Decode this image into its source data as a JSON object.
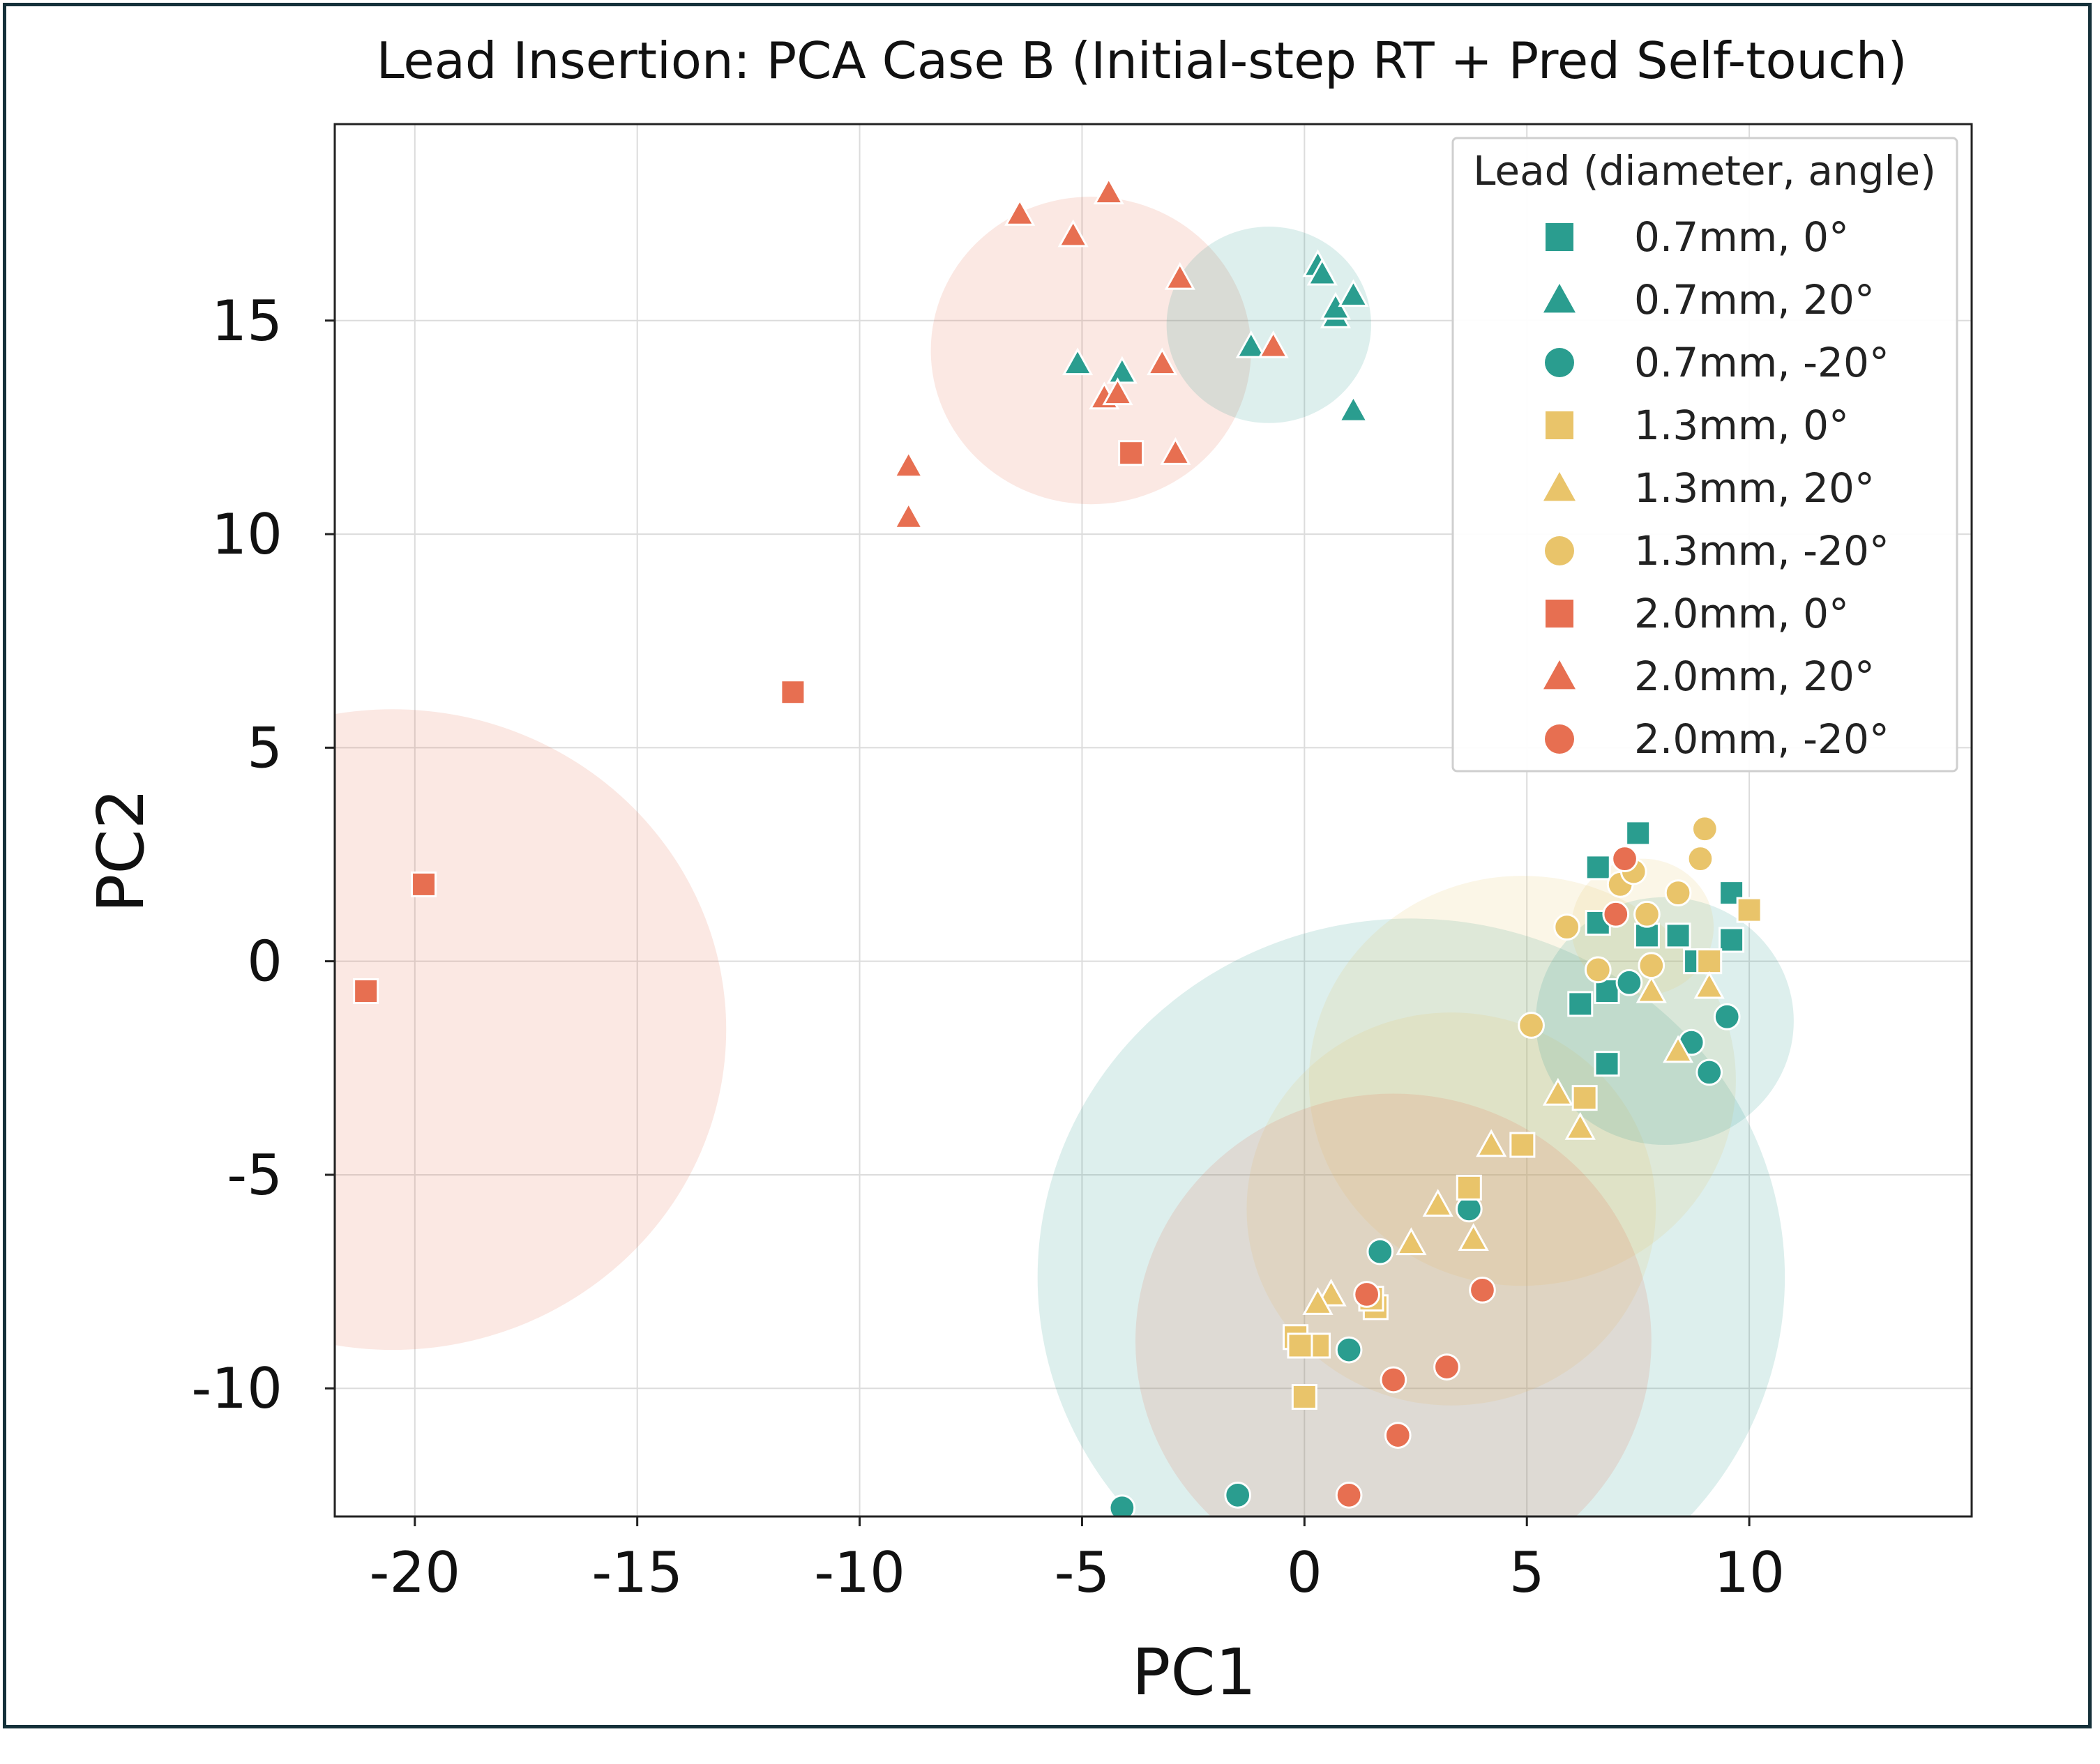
{
  "chart_data": {
    "type": "scatter",
    "title": "Lead Insertion: PCA Case B (Initial-step RT + Pred Self-touch)",
    "xlabel": "PC1",
    "ylabel": "PC2",
    "xlim": [
      -21.8,
      15
    ],
    "ylim": [
      -13,
      19.6
    ],
    "xticks": [
      -20,
      -15,
      -10,
      -5,
      0,
      5,
      10
    ],
    "yticks": [
      -10,
      -5,
      0,
      5,
      10,
      15
    ],
    "xtick_labels": [
      "-20",
      "-15",
      "-10",
      "-5",
      "0",
      "5",
      "10"
    ],
    "ytick_labels": [
      "-10",
      "-5",
      "0",
      "5",
      "10",
      "15"
    ],
    "grid": true,
    "colors": {
      "teal": "#2a9d8f",
      "yellow": "#e9c46a",
      "orange": "#e76f51"
    },
    "legend": {
      "title": "Lead (diameter, angle)",
      "position": "top-right",
      "entries": [
        {
          "label": "0.7mm, 0°",
          "marker": "square",
          "color": "#2a9d8f"
        },
        {
          "label": "0.7mm, 20°",
          "marker": "triangle",
          "color": "#2a9d8f"
        },
        {
          "label": "0.7mm, -20°",
          "marker": "circle",
          "color": "#2a9d8f"
        },
        {
          "label": "1.3mm, 0°",
          "marker": "square",
          "color": "#e9c46a"
        },
        {
          "label": "1.3mm, 20°",
          "marker": "triangle",
          "color": "#e9c46a"
        },
        {
          "label": "1.3mm, -20°",
          "marker": "circle",
          "color": "#e9c46a"
        },
        {
          "label": "2.0mm, 0°",
          "marker": "square",
          "color": "#e76f51"
        },
        {
          "label": "2.0mm, 20°",
          "marker": "triangle",
          "color": "#e76f51"
        },
        {
          "label": "2.0mm, -20°",
          "marker": "circle",
          "color": "#e76f51"
        }
      ]
    },
    "clusters": [
      {
        "name": "2.0mm, 0° spread",
        "cx": -20.5,
        "cy": -1.6,
        "r": 7.5,
        "color": "#e76f51"
      },
      {
        "name": "2.0mm, 20° spread",
        "cx": -4.8,
        "cy": 14.3,
        "r": 3.6,
        "color": "#e76f51"
      },
      {
        "name": "0.7mm, 20° spread",
        "cx": -0.8,
        "cy": 14.9,
        "r": 2.3,
        "color": "#2a9d8f"
      },
      {
        "name": "0.7mm, -20° spread",
        "cx": 2.4,
        "cy": -7.4,
        "r": 8.4,
        "color": "#2a9d8f"
      },
      {
        "name": "1.3mm, 0° spread",
        "cx": 4.9,
        "cy": -2.8,
        "r": 4.8,
        "color": "#e9c46a"
      },
      {
        "name": "1.3mm, 20° spread",
        "cx": 3.3,
        "cy": -5.8,
        "r": 4.6,
        "color": "#e9c46a"
      },
      {
        "name": "0.7mm, 0° spread",
        "cx": 8.1,
        "cy": -1.4,
        "r": 2.9,
        "color": "#2a9d8f"
      },
      {
        "name": "2.0mm, -20° spread",
        "cx": 2.0,
        "cy": -8.9,
        "r": 5.8,
        "color": "#e76f51"
      },
      {
        "name": "1.3mm, -20° spread",
        "cx": 7.6,
        "cy": 0.8,
        "r": 1.6,
        "color": "#e9c46a"
      }
    ],
    "series": [
      {
        "name": "0.7mm, 0°",
        "marker": "square",
        "color": "#2a9d8f",
        "x": [
          7.5,
          6.6,
          6.6,
          7.7,
          8.4,
          9.6,
          9.6,
          6.2,
          6.8,
          6.8,
          8.8
        ],
        "y": [
          3.0,
          2.2,
          0.9,
          0.6,
          0.6,
          1.6,
          0.5,
          -1.0,
          -0.7,
          -2.4,
          0.0
        ]
      },
      {
        "name": "0.7mm, 20°",
        "marker": "triangle",
        "color": "#2a9d8f",
        "x": [
          0.3,
          0.4,
          0.7,
          0.7,
          1.1,
          -1.2,
          -5.1,
          -4.1,
          1.1
        ],
        "y": [
          16.3,
          16.1,
          15.1,
          15.3,
          15.6,
          14.4,
          14.0,
          13.8,
          12.9
        ]
      },
      {
        "name": "0.7mm, -20°",
        "marker": "circle",
        "color": "#2a9d8f",
        "x": [
          7.3,
          8.7,
          9.5,
          9.1,
          3.7,
          1.7,
          1.0,
          -1.5,
          -4.1
        ],
        "y": [
          -0.5,
          -1.9,
          -1.3,
          -2.6,
          -5.8,
          -6.8,
          -9.1,
          -12.5,
          -12.8
        ]
      },
      {
        "name": "1.3mm, 0°",
        "marker": "square",
        "color": "#e9c46a",
        "x": [
          10.0,
          9.1,
          6.3,
          4.9,
          3.7,
          1.6,
          1.5,
          -0.2,
          0.3,
          -0.1,
          0.0
        ],
        "y": [
          1.2,
          0.0,
          -3.2,
          -4.3,
          -5.3,
          -8.1,
          -7.9,
          -8.8,
          -9.0,
          -9.0,
          -10.2
        ]
      },
      {
        "name": "1.3mm, 20°",
        "marker": "triangle",
        "color": "#e9c46a",
        "x": [
          7.8,
          9.1,
          8.4,
          5.7,
          6.2,
          4.2,
          3.0,
          2.4,
          3.8,
          0.6,
          0.3
        ],
        "y": [
          -0.7,
          -0.6,
          -2.1,
          -3.1,
          -3.9,
          -4.3,
          -5.7,
          -6.6,
          -6.5,
          -7.8,
          -8.0
        ]
      },
      {
        "name": "1.3mm, -20°",
        "marker": "circle",
        "color": "#e9c46a",
        "x": [
          9.0,
          8.9,
          7.1,
          7.4,
          8.4,
          5.9,
          7.7,
          6.6,
          7.8,
          5.1
        ],
        "y": [
          3.1,
          2.4,
          1.8,
          2.1,
          1.6,
          0.8,
          1.1,
          -0.2,
          -0.1,
          -1.5
        ]
      },
      {
        "name": "2.0mm, 0°",
        "marker": "square",
        "color": "#e76f51",
        "x": [
          -3.9,
          -11.5,
          -19.8,
          -21.1
        ],
        "y": [
          11.9,
          6.3,
          1.8,
          -0.7
        ]
      },
      {
        "name": "2.0mm, 20°",
        "marker": "triangle",
        "color": "#e76f51",
        "x": [
          -4.4,
          -6.4,
          -5.2,
          -2.8,
          -3.2,
          -0.7,
          -4.5,
          -4.2,
          -2.9,
          -8.9,
          -8.9
        ],
        "y": [
          18.0,
          17.5,
          17.0,
          16.0,
          14.0,
          14.4,
          13.2,
          13.3,
          11.9,
          11.6,
          10.4
        ]
      },
      {
        "name": "2.0mm, -20°",
        "marker": "circle",
        "color": "#e76f51",
        "x": [
          7.2,
          7.0,
          1.4,
          4.0,
          3.2,
          2.0,
          2.1,
          1.0
        ],
        "y": [
          2.4,
          1.1,
          -7.8,
          -7.7,
          -9.5,
          -9.8,
          -11.1,
          -12.5
        ]
      }
    ]
  }
}
